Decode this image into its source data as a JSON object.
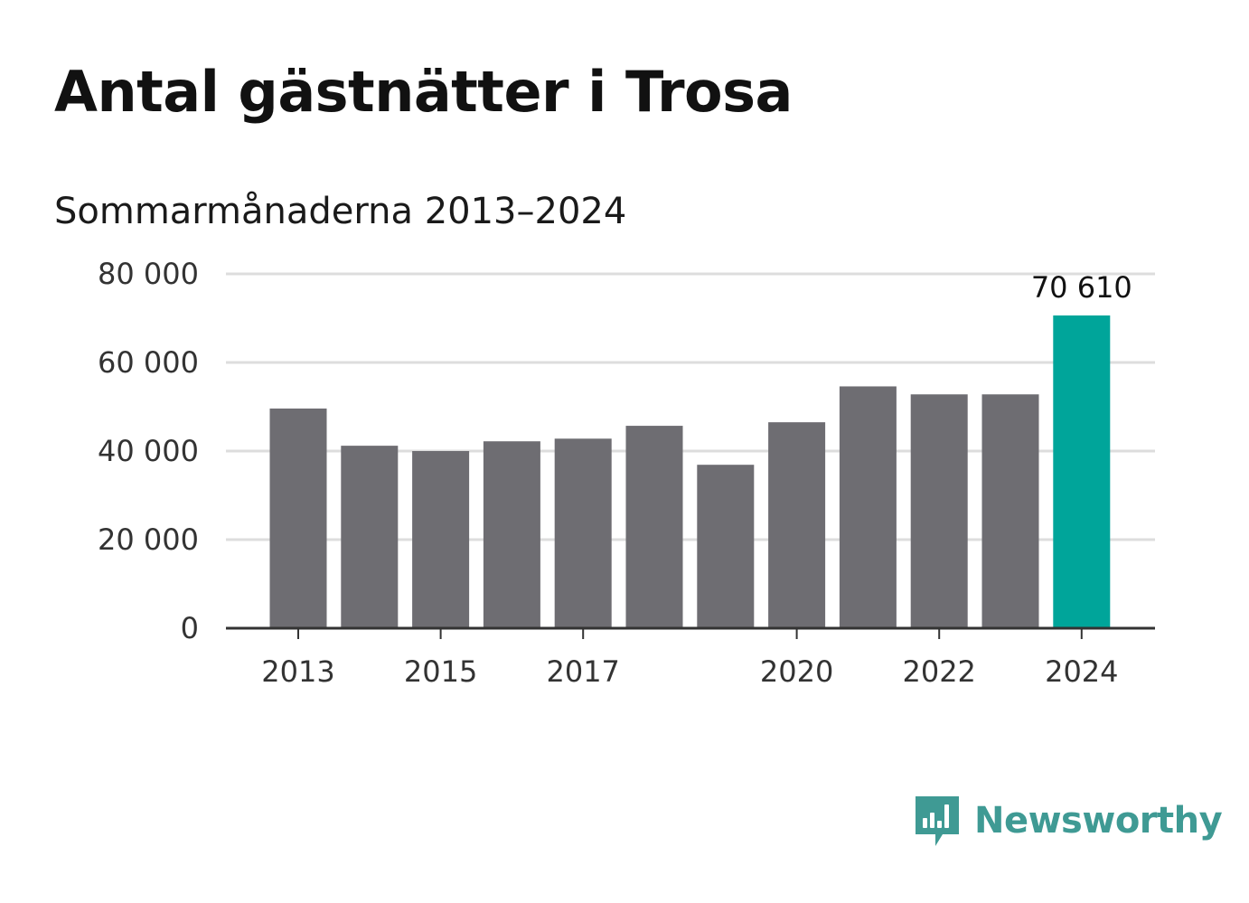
{
  "title": "Antal gästnätter i Trosa",
  "subtitle": "Sommarmånaderna 2013–2024",
  "brand": {
    "name": "Newsworthy",
    "color": "#3f9a94",
    "icon": "bar-chart-speech-bubble-icon"
  },
  "colors": {
    "bar_default": "#6e6d72",
    "bar_highlight": "#00a59a",
    "grid": "#dddddd",
    "axis": "#333333"
  },
  "chart_data": {
    "type": "bar",
    "categories": [
      "2013",
      "2014",
      "2015",
      "2016",
      "2017",
      "2018",
      "2019",
      "2020",
      "2021",
      "2022",
      "2023",
      "2024"
    ],
    "values": [
      49600,
      41200,
      40000,
      42200,
      42800,
      45700,
      36900,
      46500,
      54600,
      52800,
      52800,
      70610
    ],
    "highlight_index": 11,
    "data_labels": [
      {
        "index": 11,
        "text": "70 610"
      }
    ],
    "x_tick_labels": [
      "2013",
      "2015",
      "2017",
      "2020",
      "2022",
      "2024"
    ],
    "y_ticks": [
      0,
      20000,
      40000,
      60000,
      80000
    ],
    "y_tick_labels": [
      "0",
      "20 000",
      "40 000",
      "60 000",
      "80 000"
    ],
    "ylim": [
      0,
      80000
    ],
    "xlabel": "",
    "ylabel": "",
    "grid": true,
    "legend": "none"
  }
}
